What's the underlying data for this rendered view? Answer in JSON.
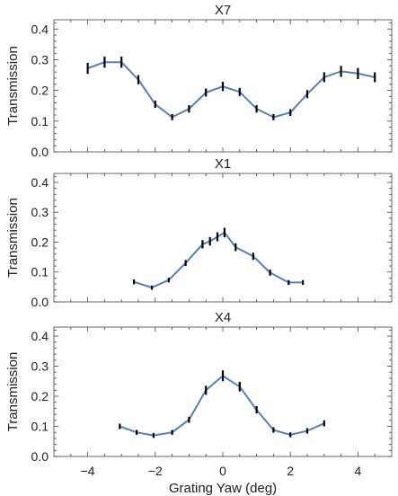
{
  "colors": {
    "line": "#5b7fb5",
    "errorbar": "#000000",
    "frame": "#444444"
  },
  "chart_data": [
    {
      "type": "line",
      "title": "X7",
      "xlabel": "",
      "ylabel": "Transmission",
      "xlim": [
        -5,
        5
      ],
      "ylim": [
        0,
        0.43
      ],
      "xticks": [
        -4,
        -2,
        0,
        2,
        4
      ],
      "yticks": [
        "0.0",
        "0.1",
        "0.2",
        "0.3",
        "0.4"
      ],
      "show_x_tick_labels": false,
      "error_bars": true,
      "points": [
        {
          "x": -4.0,
          "y": 0.272,
          "err": 0.018
        },
        {
          "x": -3.5,
          "y": 0.292,
          "err": 0.018
        },
        {
          "x": -3.0,
          "y": 0.292,
          "err": 0.018
        },
        {
          "x": -2.5,
          "y": 0.235,
          "err": 0.015
        },
        {
          "x": -2.0,
          "y": 0.155,
          "err": 0.012
        },
        {
          "x": -1.5,
          "y": 0.113,
          "err": 0.01
        },
        {
          "x": -1.0,
          "y": 0.14,
          "err": 0.012
        },
        {
          "x": -0.5,
          "y": 0.193,
          "err": 0.013
        },
        {
          "x": 0.0,
          "y": 0.213,
          "err": 0.015
        },
        {
          "x": 0.5,
          "y": 0.195,
          "err": 0.013
        },
        {
          "x": 1.0,
          "y": 0.14,
          "err": 0.012
        },
        {
          "x": 1.5,
          "y": 0.113,
          "err": 0.01
        },
        {
          "x": 2.0,
          "y": 0.128,
          "err": 0.011
        },
        {
          "x": 2.5,
          "y": 0.188,
          "err": 0.013
        },
        {
          "x": 3.0,
          "y": 0.243,
          "err": 0.016
        },
        {
          "x": 3.5,
          "y": 0.262,
          "err": 0.018
        },
        {
          "x": 4.0,
          "y": 0.255,
          "err": 0.018
        },
        {
          "x": 4.5,
          "y": 0.243,
          "err": 0.016
        }
      ]
    },
    {
      "type": "line",
      "title": "X1",
      "xlabel": "",
      "ylabel": "Transmission",
      "xlim": [
        -5,
        5
      ],
      "ylim": [
        0,
        0.43
      ],
      "xticks": [
        -4,
        -2,
        0,
        2,
        4
      ],
      "yticks": [
        "0.0",
        "0.1",
        "0.2",
        "0.3",
        "0.4"
      ],
      "show_x_tick_labels": false,
      "error_bars": true,
      "points": [
        {
          "x": -2.63,
          "y": 0.067,
          "err": 0.008
        },
        {
          "x": -2.1,
          "y": 0.048,
          "err": 0.007
        },
        {
          "x": -1.6,
          "y": 0.073,
          "err": 0.008
        },
        {
          "x": -1.1,
          "y": 0.13,
          "err": 0.01
        },
        {
          "x": -0.6,
          "y": 0.193,
          "err": 0.014
        },
        {
          "x": -0.38,
          "y": 0.203,
          "err": 0.014
        },
        {
          "x": -0.16,
          "y": 0.218,
          "err": 0.015
        },
        {
          "x": 0.05,
          "y": 0.232,
          "err": 0.016
        },
        {
          "x": 0.38,
          "y": 0.183,
          "err": 0.013
        },
        {
          "x": 0.9,
          "y": 0.153,
          "err": 0.012
        },
        {
          "x": 1.4,
          "y": 0.098,
          "err": 0.01
        },
        {
          "x": 1.95,
          "y": 0.065,
          "err": 0.008
        },
        {
          "x": 2.37,
          "y": 0.065,
          "err": 0.008
        }
      ]
    },
    {
      "type": "line",
      "title": "X4",
      "xlabel": "Grating Yaw (deg)",
      "ylabel": "Transmission",
      "xlim": [
        -5,
        5
      ],
      "ylim": [
        0,
        0.43
      ],
      "xticks": [
        -4,
        -2,
        0,
        2,
        4
      ],
      "xticklabels": [
        "−4",
        "−2",
        "0",
        "2",
        "4"
      ],
      "yticks": [
        "0.0",
        "0.1",
        "0.2",
        "0.3",
        "0.4"
      ],
      "show_x_tick_labels": true,
      "error_bars": true,
      "points": [
        {
          "x": -3.05,
          "y": 0.1,
          "err": 0.009
        },
        {
          "x": -2.55,
          "y": 0.08,
          "err": 0.008
        },
        {
          "x": -2.05,
          "y": 0.07,
          "err": 0.008
        },
        {
          "x": -1.5,
          "y": 0.08,
          "err": 0.008
        },
        {
          "x": -1.0,
          "y": 0.122,
          "err": 0.01
        },
        {
          "x": -0.5,
          "y": 0.22,
          "err": 0.015
        },
        {
          "x": 0.0,
          "y": 0.268,
          "err": 0.018
        },
        {
          "x": 0.5,
          "y": 0.232,
          "err": 0.016
        },
        {
          "x": 1.0,
          "y": 0.155,
          "err": 0.012
        },
        {
          "x": 1.5,
          "y": 0.088,
          "err": 0.009
        },
        {
          "x": 2.0,
          "y": 0.072,
          "err": 0.008
        },
        {
          "x": 2.5,
          "y": 0.085,
          "err": 0.009
        },
        {
          "x": 3.0,
          "y": 0.11,
          "err": 0.01
        }
      ]
    }
  ]
}
